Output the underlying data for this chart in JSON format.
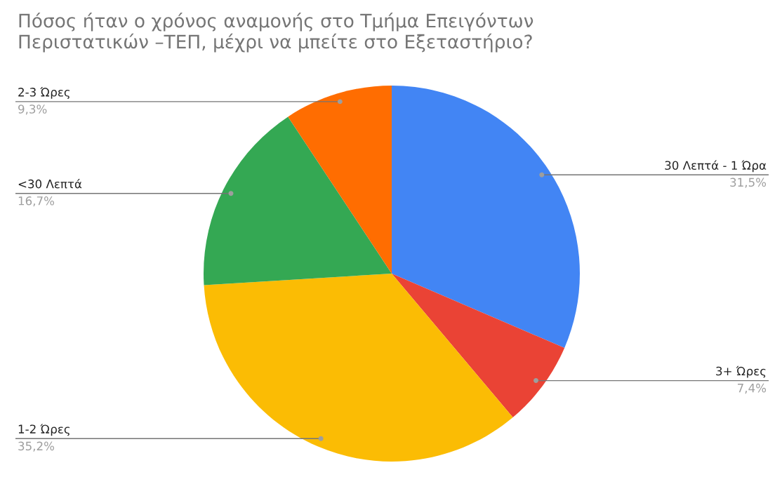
{
  "chart_data": {
    "type": "pie",
    "title": "Πόσος ήταν ο χρόνος αναμονής στο Τμήμα Επειγόντων\nΠεριστατικών –ΤΕΠ, μέχρι να μπείτε στο Εξεταστήριο?",
    "categories": [
      "30 Λεπτά - 1 Ώρα",
      "3+ Ώρες",
      "1-2 Ώρες",
      "<30 Λεπτά",
      "2-3 Ώρες"
    ],
    "values": [
      31.5,
      7.4,
      35.2,
      16.7,
      9.3
    ],
    "value_labels": [
      "31,5%",
      "7,4%",
      "35,2%",
      "16,7%",
      "9,3%"
    ],
    "colors": [
      "#4285f4",
      "#ea4335",
      "#fbbc04",
      "#34a853",
      "#ff6d01"
    ],
    "legend": false
  }
}
